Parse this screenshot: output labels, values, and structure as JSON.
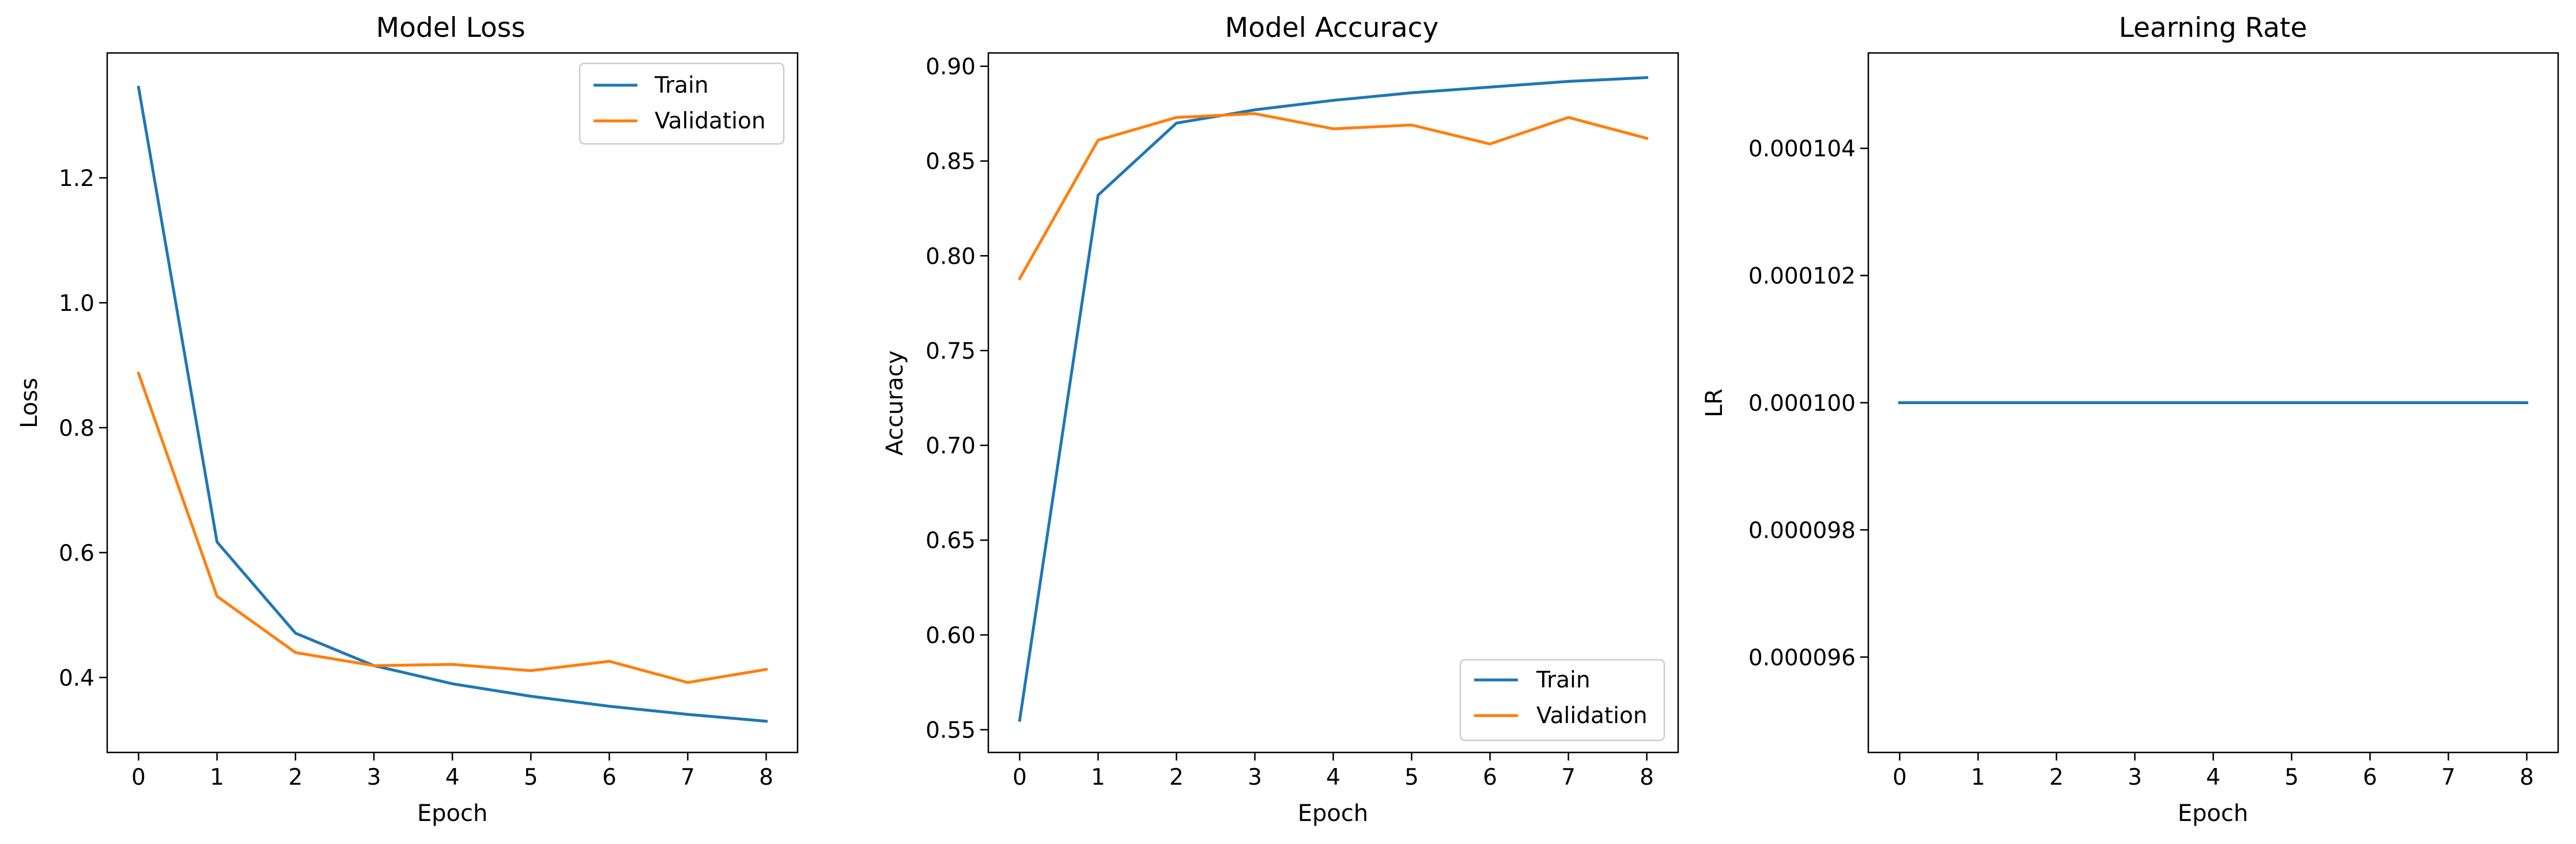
{
  "chart_data": [
    {
      "type": "line",
      "title": "Model Loss",
      "xlabel": "Epoch",
      "ylabel": "Loss",
      "x": [
        0,
        1,
        2,
        3,
        4,
        5,
        6,
        7,
        8
      ],
      "xticks": [
        "0",
        "1",
        "2",
        "3",
        "4",
        "5",
        "6",
        "7",
        "8"
      ],
      "xlim": [
        -0.4,
        8.4
      ],
      "ylim": [
        0.28,
        1.4
      ],
      "yticks": [
        0.4,
        0.6,
        0.8,
        1.0,
        1.2
      ],
      "ytick_labels": [
        "0.4",
        "0.6",
        "0.8",
        "1.0",
        "1.2"
      ],
      "legend": "top-right",
      "grid": false,
      "series": [
        {
          "name": "Train",
          "color": "#1f77b4",
          "values": [
            1.345,
            0.617,
            0.471,
            0.419,
            0.39,
            0.37,
            0.354,
            0.341,
            0.33
          ]
        },
        {
          "name": "Validation",
          "color": "#ff7f0e",
          "values": [
            0.887,
            0.53,
            0.44,
            0.419,
            0.421,
            0.411,
            0.426,
            0.392,
            0.413
          ]
        }
      ]
    },
    {
      "type": "line",
      "title": "Model Accuracy",
      "xlabel": "Epoch",
      "ylabel": "Accuracy",
      "x": [
        0,
        1,
        2,
        3,
        4,
        5,
        6,
        7,
        8
      ],
      "xticks": [
        "0",
        "1",
        "2",
        "3",
        "4",
        "5",
        "6",
        "7",
        "8"
      ],
      "xlim": [
        -0.4,
        8.4
      ],
      "ylim": [
        0.538,
        0.907
      ],
      "yticks": [
        0.55,
        0.6,
        0.65,
        0.7,
        0.75,
        0.8,
        0.85,
        0.9
      ],
      "ytick_labels": [
        "0.55",
        "0.60",
        "0.65",
        "0.70",
        "0.75",
        "0.80",
        "0.85",
        "0.90"
      ],
      "legend": "bottom-right",
      "grid": false,
      "series": [
        {
          "name": "Train",
          "color": "#1f77b4",
          "values": [
            0.555,
            0.832,
            0.87,
            0.877,
            0.882,
            0.886,
            0.889,
            0.892,
            0.894
          ]
        },
        {
          "name": "Validation",
          "color": "#ff7f0e",
          "values": [
            0.788,
            0.861,
            0.873,
            0.875,
            0.867,
            0.869,
            0.859,
            0.873,
            0.862
          ]
        }
      ]
    },
    {
      "type": "line",
      "title": "Learning Rate",
      "xlabel": "Epoch",
      "ylabel": "LR",
      "x": [
        0,
        1,
        2,
        3,
        4,
        5,
        6,
        7,
        8
      ],
      "xticks": [
        "0",
        "1",
        "2",
        "3",
        "4",
        "5",
        "6",
        "7",
        "8"
      ],
      "xlim": [
        -0.4,
        8.4
      ],
      "ylim": [
        9.45e-05,
        0.0001055
      ],
      "yticks": [
        9.6e-05,
        9.8e-05,
        0.0001,
        0.000102,
        0.000104
      ],
      "ytick_labels": [
        "0.000096",
        "0.000098",
        "0.000100",
        "0.000102",
        "0.000104"
      ],
      "legend": "none",
      "grid": false,
      "series": [
        {
          "color": "#1f77b4",
          "values": [
            0.0001,
            0.0001,
            0.0001,
            0.0001,
            0.0001,
            0.0001,
            0.0001,
            0.0001,
            0.0001
          ]
        }
      ]
    }
  ]
}
